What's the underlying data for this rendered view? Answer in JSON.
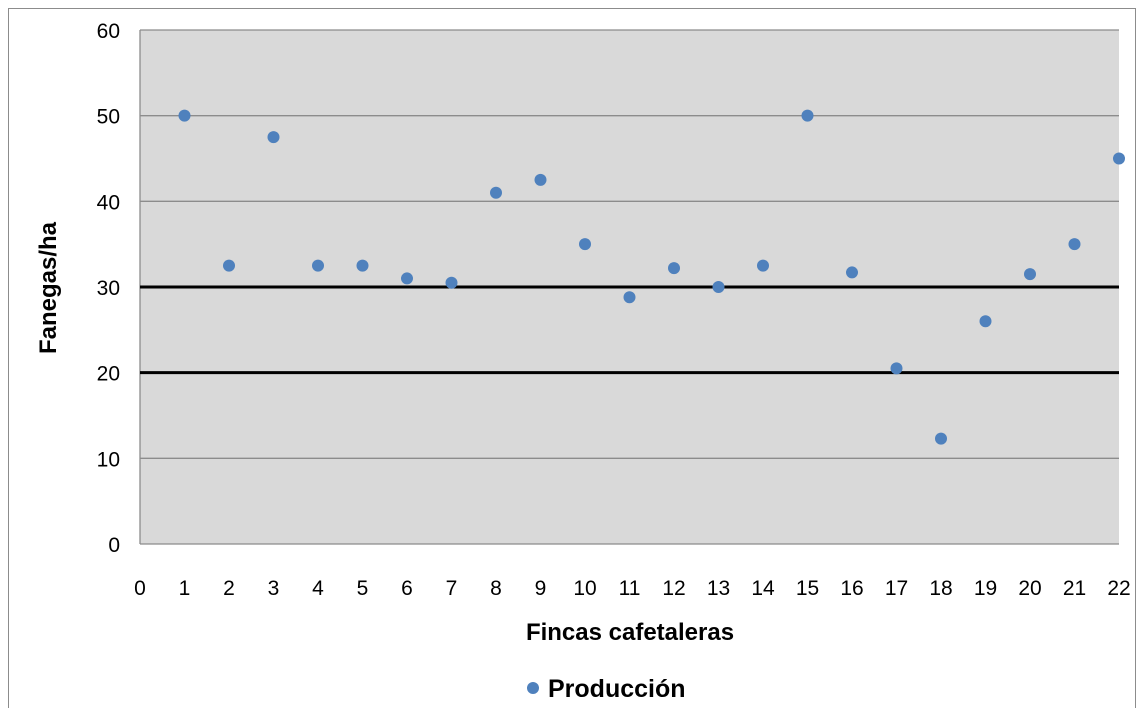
{
  "chart_data": {
    "type": "scatter",
    "title": "",
    "xlabel": "Fincas cafetaleras",
    "ylabel": "Fanegas/ha",
    "xlim": [
      0,
      22
    ],
    "ylim": [
      0,
      60
    ],
    "x_ticks": [
      0,
      1,
      2,
      3,
      4,
      5,
      6,
      7,
      8,
      9,
      10,
      11,
      12,
      13,
      14,
      15,
      16,
      17,
      18,
      19,
      20,
      21,
      22
    ],
    "y_ticks": [
      0,
      10,
      20,
      30,
      40,
      50,
      60
    ],
    "grid": true,
    "plot_background": "#d9d9d9",
    "gridline_color": "#8c8c8c",
    "marker_color": "#4f81bd",
    "legend_position": "bottom",
    "reference_lines": [
      {
        "y": 30,
        "color": "#000000"
      },
      {
        "y": 20,
        "color": "#000000"
      }
    ],
    "series": [
      {
        "name": "Producción",
        "x": [
          1,
          2,
          3,
          4,
          5,
          6,
          7,
          8,
          9,
          10,
          11,
          12,
          13,
          14,
          15,
          16,
          17,
          18,
          19,
          20,
          21,
          22
        ],
        "y": [
          50,
          32.5,
          47.5,
          32.5,
          32.5,
          31,
          30.5,
          41,
          42.5,
          35,
          28.8,
          32.2,
          30,
          32.5,
          50,
          31.7,
          20.5,
          12.3,
          26,
          31.5,
          35,
          45
        ]
      }
    ]
  }
}
